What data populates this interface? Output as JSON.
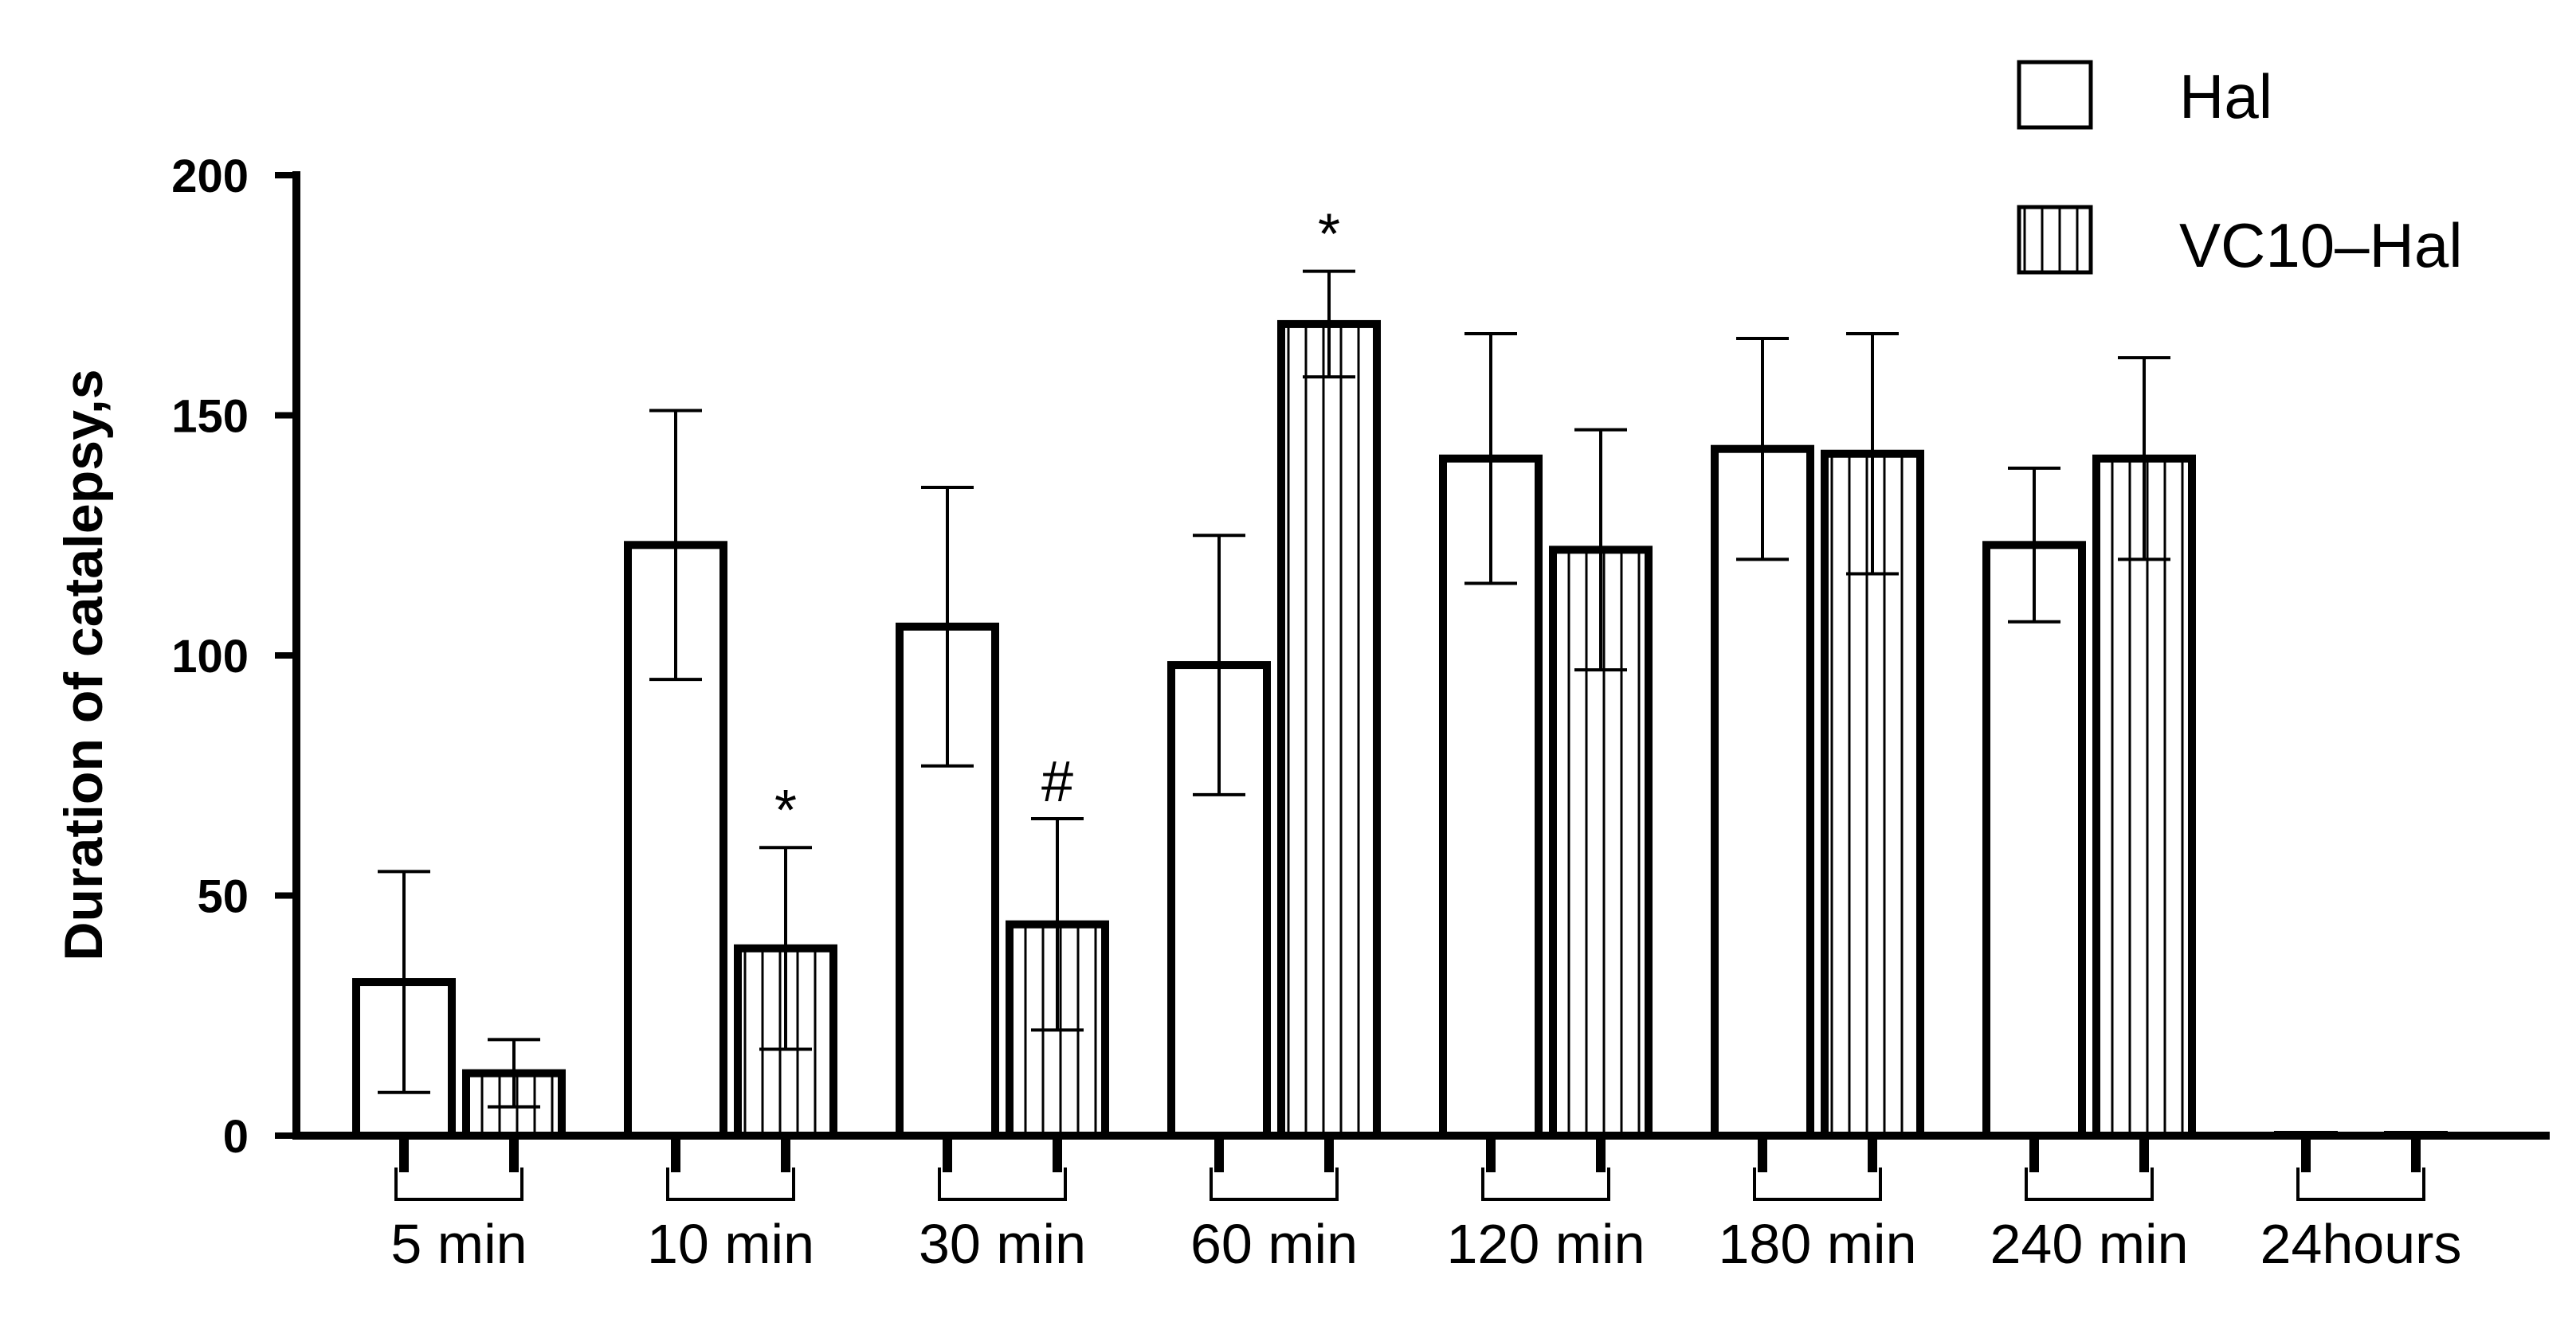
{
  "chart_data": {
    "type": "bar",
    "title": "",
    "xlabel": "",
    "ylabel": "Duration of catalepsy,s",
    "ylim": [
      0,
      200
    ],
    "yticks": [
      "0",
      "50",
      "100",
      "150",
      "200"
    ],
    "grid": false,
    "legend_position": "top-right",
    "categories": [
      "5 min",
      "10 min",
      "30 min",
      "60 min",
      "120 min",
      "180 min",
      "240 min",
      "24hours"
    ],
    "series": [
      {
        "name": "Hal",
        "pattern": "open",
        "values": [
          32,
          123,
          106,
          98,
          141,
          143,
          123,
          0
        ],
        "errors": [
          23,
          28,
          29,
          27,
          26,
          23,
          16,
          0
        ]
      },
      {
        "name": "VC10–Hal",
        "pattern": "vertical-stripes",
        "values": [
          13,
          39,
          44,
          169,
          122,
          142,
          141,
          0
        ],
        "errors": [
          7,
          21,
          22,
          11,
          25,
          25,
          21,
          0
        ]
      }
    ],
    "annotations": [
      {
        "category_index": 1,
        "series_index": 1,
        "text": "*"
      },
      {
        "category_index": 2,
        "series_index": 1,
        "text": "#"
      },
      {
        "category_index": 3,
        "series_index": 1,
        "text": "*"
      }
    ]
  }
}
